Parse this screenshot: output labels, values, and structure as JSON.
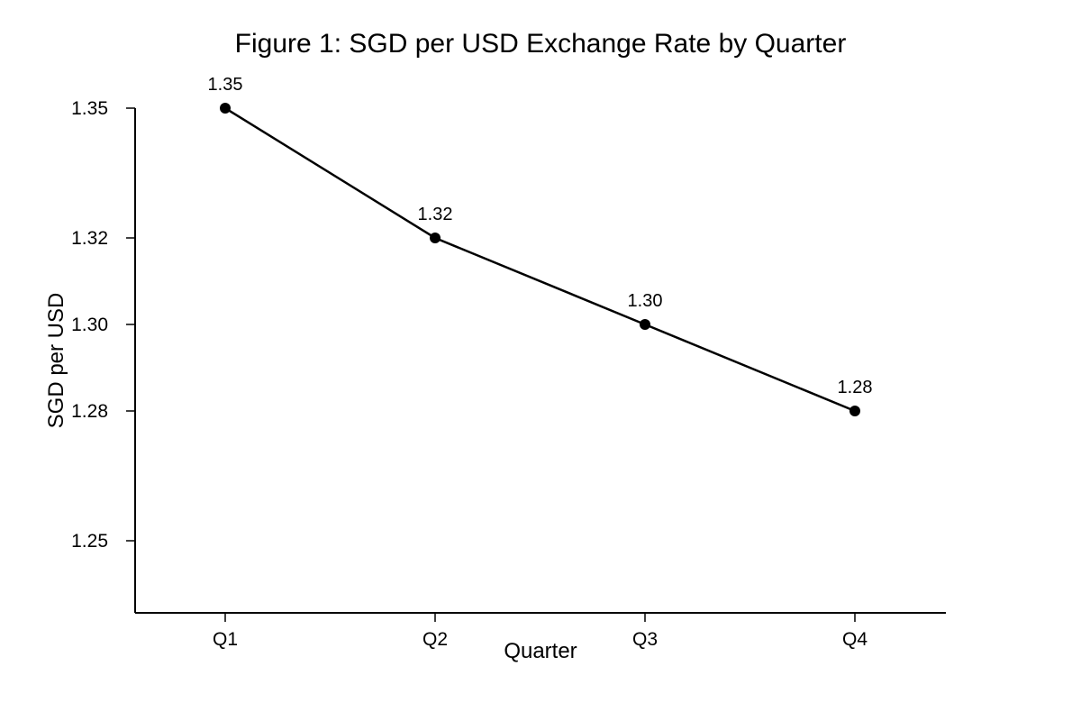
{
  "chart_data": {
    "type": "line",
    "title": "Figure 1: SGD per USD Exchange Rate by Quarter",
    "xlabel": "Quarter",
    "ylabel": "SGD per USD",
    "categories": [
      "Q1",
      "Q2",
      "Q3",
      "Q4"
    ],
    "series": [
      {
        "values": [
          1.35,
          1.32,
          1.3,
          1.28
        ],
        "data_labels": [
          "1.35",
          "1.32",
          "1.30",
          "1.28"
        ]
      }
    ],
    "yticks": [
      1.25,
      1.28,
      1.3,
      1.32,
      1.35
    ],
    "ytick_labels": [
      "1.25",
      "1.28",
      "1.30",
      "1.32",
      "1.35"
    ],
    "ylim": [
      1.23,
      1.37
    ],
    "grid": false,
    "legend": "none",
    "line_color": "#000000",
    "marker_color": "#000000"
  }
}
